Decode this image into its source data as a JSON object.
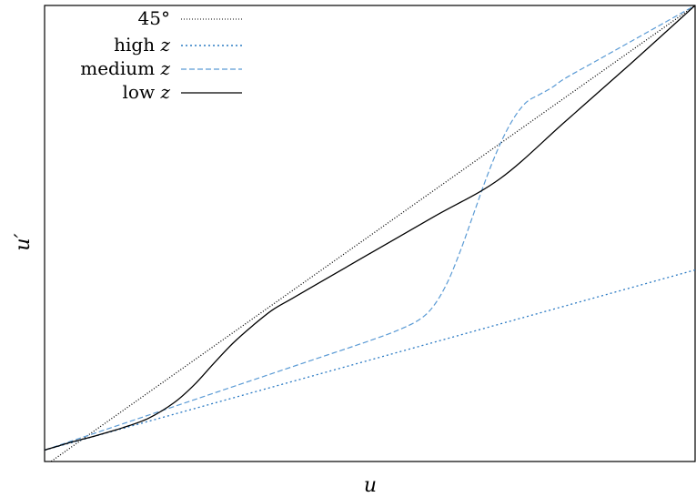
{
  "chart_data": {
    "type": "line",
    "xlabel": "u",
    "ylabel": "u′",
    "xlim": [
      0,
      1
    ],
    "ylim": [
      0,
      1
    ],
    "ticks": "none",
    "grid": false,
    "legend_position": "top-left",
    "legend": [
      {
        "prefix": "45°",
        "var": ""
      },
      {
        "prefix": "high ",
        "var": "z"
      },
      {
        "prefix": "medium ",
        "var": "z"
      },
      {
        "prefix": "low ",
        "var": "z"
      }
    ],
    "series": [
      {
        "name": "45°",
        "style": "dotted",
        "color": "#000000",
        "x": [
          0,
          1
        ],
        "y": [
          -0.01,
          1.0
        ]
      },
      {
        "name": "high z",
        "style": "dotted",
        "color": "#2c7bc4",
        "x": [
          0,
          1
        ],
        "y": [
          0.025,
          0.42
        ]
      },
      {
        "name": "medium z",
        "style": "dashed",
        "color": "#5b9bd5",
        "x": [
          0,
          0.05,
          0.1,
          0.2,
          0.3,
          0.4,
          0.5,
          0.55,
          0.58,
          0.6,
          0.62,
          0.64,
          0.66,
          0.68,
          0.7,
          0.72,
          0.74,
          0.76,
          0.78,
          0.8,
          0.85,
          0.9,
          0.95,
          1.0
        ],
        "y": [
          0.025,
          0.049,
          0.073,
          0.121,
          0.169,
          0.217,
          0.265,
          0.292,
          0.315,
          0.345,
          0.395,
          0.465,
          0.545,
          0.625,
          0.695,
          0.75,
          0.787,
          0.804,
          0.82,
          0.84,
          0.88,
          0.92,
          0.96,
          1.0
        ]
      },
      {
        "name": "low z",
        "style": "solid",
        "color": "#000000",
        "x": [
          0,
          0.04,
          0.08,
          0.12,
          0.16,
          0.2,
          0.23,
          0.26,
          0.29,
          0.32,
          0.35,
          0.38,
          0.42,
          0.5,
          0.6,
          0.7,
          0.8,
          0.9,
          1.0
        ],
        "y": [
          0.025,
          0.042,
          0.057,
          0.074,
          0.095,
          0.13,
          0.168,
          0.215,
          0.26,
          0.298,
          0.332,
          0.357,
          0.39,
          0.456,
          0.538,
          0.62,
          0.745,
          0.871,
          1.0
        ]
      }
    ]
  }
}
